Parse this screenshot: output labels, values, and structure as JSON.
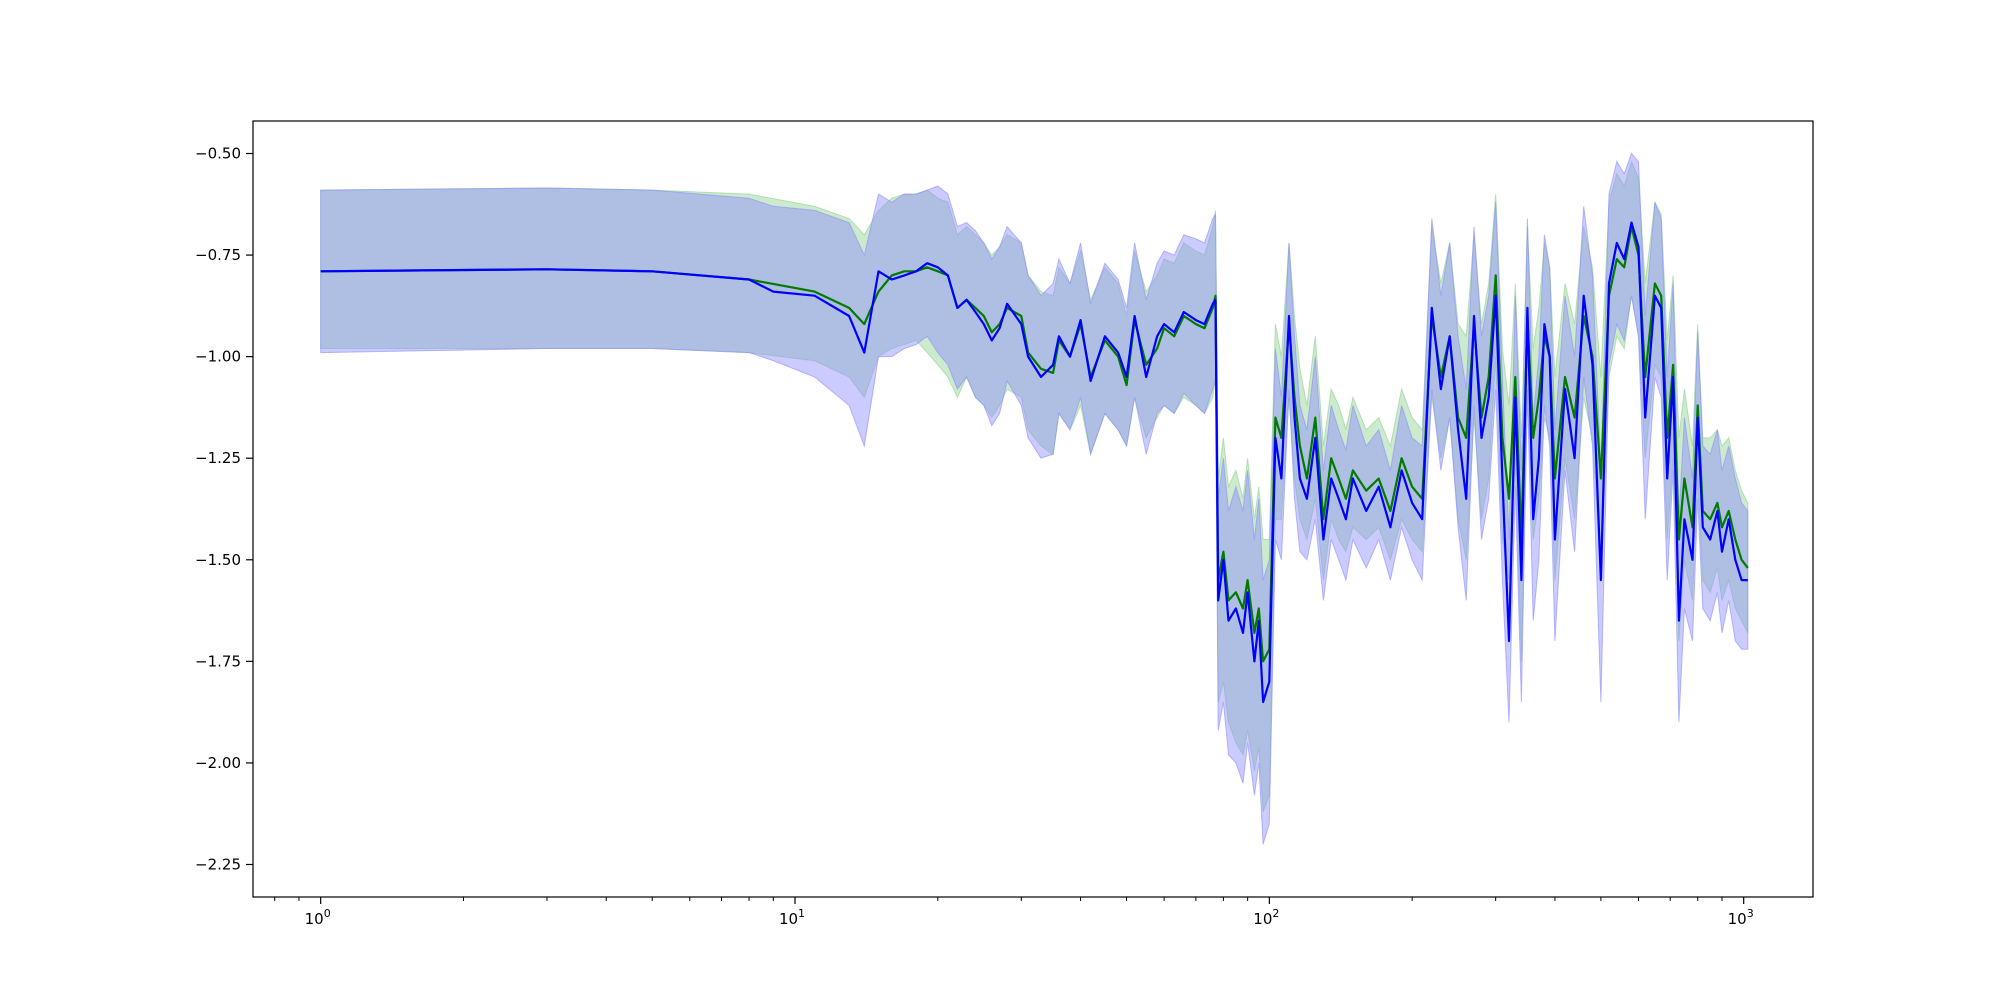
{
  "chart_data": {
    "type": "line",
    "title": "",
    "xlabel": "",
    "ylabel": "",
    "x_scale": "log",
    "xlim": [
      0.72,
      1400
    ],
    "ylim": [
      -2.33,
      -0.42
    ],
    "grid": false,
    "legend": "none",
    "x_ticks": [
      {
        "value": 1,
        "base": "10",
        "exp": "0"
      },
      {
        "value": 10,
        "base": "10",
        "exp": "1"
      },
      {
        "value": 100,
        "base": "10",
        "exp": "2"
      },
      {
        "value": 1000,
        "base": "10",
        "exp": "3"
      }
    ],
    "y_ticks": [
      {
        "value": -0.5,
        "label": "−0.50"
      },
      {
        "value": -0.75,
        "label": "−0.75"
      },
      {
        "value": -1.0,
        "label": "−1.00"
      },
      {
        "value": -1.25,
        "label": "−1.25"
      },
      {
        "value": -1.5,
        "label": "−1.50"
      },
      {
        "value": -1.75,
        "label": "−1.75"
      },
      {
        "value": -2.0,
        "label": "−2.00"
      },
      {
        "value": -2.25,
        "label": "−2.25"
      }
    ],
    "series": [
      {
        "color": "#007a00",
        "band_color": "#8fd08f",
        "x": [
          1,
          3,
          5,
          8,
          11,
          13,
          14,
          15,
          16,
          17,
          18,
          19,
          20,
          21,
          22,
          23,
          24,
          25,
          26,
          27,
          28,
          30,
          31,
          33,
          35,
          36,
          38,
          40,
          42,
          45,
          48,
          50,
          52,
          55,
          58,
          60,
          63,
          66,
          70,
          73,
          76,
          77,
          78,
          80,
          82,
          85,
          88,
          90,
          93,
          95,
          97,
          100,
          103,
          106,
          110,
          113,
          116,
          120,
          125,
          130,
          135,
          140,
          145,
          150,
          160,
          170,
          180,
          190,
          200,
          210,
          220,
          230,
          240,
          250,
          260,
          270,
          280,
          290,
          300,
          310,
          320,
          330,
          340,
          350,
          360,
          370,
          380,
          390,
          400,
          420,
          440,
          460,
          480,
          500,
          520,
          540,
          560,
          580,
          600,
          620,
          650,
          670,
          690,
          710,
          730,
          750,
          780,
          800,
          820,
          850,
          880,
          900,
          930,
          960,
          990,
          1020
        ],
        "y": [
          -0.79,
          -0.785,
          -0.79,
          -0.81,
          -0.84,
          -0.88,
          -0.92,
          -0.84,
          -0.8,
          -0.79,
          -0.79,
          -0.78,
          -0.79,
          -0.8,
          -0.88,
          -0.86,
          -0.88,
          -0.9,
          -0.94,
          -0.92,
          -0.88,
          -0.9,
          -0.99,
          -1.03,
          -1.04,
          -0.96,
          -1.0,
          -0.92,
          -1.05,
          -0.96,
          -1.0,
          -1.07,
          -0.91,
          -1.02,
          -0.98,
          -0.93,
          -0.95,
          -0.9,
          -0.92,
          -0.93,
          -0.88,
          -0.85,
          -1.55,
          -1.48,
          -1.6,
          -1.58,
          -1.62,
          -1.55,
          -1.68,
          -1.62,
          -1.75,
          -1.72,
          -1.15,
          -1.2,
          -0.92,
          -1.1,
          -1.22,
          -1.3,
          -1.15,
          -1.4,
          -1.25,
          -1.3,
          -1.35,
          -1.28,
          -1.33,
          -1.3,
          -1.38,
          -1.25,
          -1.32,
          -1.35,
          -0.9,
          -1.05,
          -0.95,
          -1.15,
          -1.2,
          -0.92,
          -1.15,
          -1.05,
          -0.8,
          -1.2,
          -1.35,
          -1.05,
          -1.45,
          -0.9,
          -1.2,
          -1.1,
          -0.95,
          -1.0,
          -1.3,
          -1.05,
          -1.15,
          -0.9,
          -1.0,
          -1.3,
          -0.85,
          -0.76,
          -0.78,
          -0.68,
          -0.75,
          -1.05,
          -0.82,
          -0.85,
          -1.2,
          -1.02,
          -1.45,
          -1.3,
          -1.42,
          -1.12,
          -1.38,
          -1.4,
          -1.36,
          -1.42,
          -1.38,
          -1.45,
          -1.5,
          -1.52
        ],
        "lower": [
          -0.98,
          -0.98,
          -0.98,
          -0.99,
          -1.01,
          -1.05,
          -1.1,
          -1.0,
          -0.98,
          -0.97,
          -0.96,
          -0.99,
          -1.02,
          -1.05,
          -1.1,
          -1.05,
          -1.1,
          -1.12,
          -1.15,
          -1.12,
          -1.08,
          -1.1,
          -1.18,
          -1.22,
          -1.24,
          -1.14,
          -1.18,
          -1.12,
          -1.24,
          -1.14,
          -1.18,
          -1.22,
          -1.1,
          -1.2,
          -1.15,
          -1.12,
          -1.14,
          -1.1,
          -1.12,
          -1.14,
          -1.1,
          -1.05,
          -1.85,
          -1.8,
          -1.9,
          -1.95,
          -1.98,
          -1.92,
          -2.02,
          -1.96,
          -2.12,
          -2.08,
          -1.4,
          -1.4,
          -1.1,
          -1.3,
          -1.4,
          -1.45,
          -1.35,
          -1.55,
          -1.4,
          -1.45,
          -1.48,
          -1.42,
          -1.45,
          -1.42,
          -1.5,
          -1.4,
          -1.45,
          -1.48,
          -1.1,
          -1.25,
          -1.15,
          -1.4,
          -1.5,
          -1.15,
          -1.4,
          -1.3,
          -1.0,
          -1.45,
          -1.55,
          -1.25,
          -1.75,
          -1.1,
          -1.45,
          -1.35,
          -1.15,
          -1.2,
          -1.55,
          -1.25,
          -1.4,
          -1.1,
          -1.2,
          -1.55,
          -1.05,
          -0.95,
          -0.98,
          -0.85,
          -0.95,
          -1.25,
          -1.02,
          -1.05,
          -1.45,
          -1.25,
          -1.7,
          -1.5,
          -1.6,
          -1.3,
          -1.55,
          -1.58,
          -1.52,
          -1.6,
          -1.55,
          -1.62,
          -1.65,
          -1.68
        ],
        "upper": [
          -0.59,
          -0.585,
          -0.59,
          -0.6,
          -0.63,
          -0.66,
          -0.7,
          -0.64,
          -0.61,
          -0.6,
          -0.6,
          -0.59,
          -0.61,
          -0.62,
          -0.7,
          -0.68,
          -0.7,
          -0.72,
          -0.75,
          -0.73,
          -0.7,
          -0.72,
          -0.8,
          -0.84,
          -0.85,
          -0.78,
          -0.82,
          -0.74,
          -0.86,
          -0.78,
          -0.82,
          -0.9,
          -0.74,
          -0.84,
          -0.8,
          -0.76,
          -0.77,
          -0.72,
          -0.74,
          -0.75,
          -0.68,
          -0.64,
          -1.3,
          -1.2,
          -1.32,
          -1.28,
          -1.35,
          -1.25,
          -1.4,
          -1.32,
          -1.45,
          -1.45,
          -0.92,
          -1.0,
          -0.72,
          -0.9,
          -1.03,
          -1.12,
          -0.95,
          -1.22,
          -1.08,
          -1.12,
          -1.18,
          -1.1,
          -1.18,
          -1.15,
          -1.22,
          -1.08,
          -1.15,
          -1.18,
          -0.68,
          -0.82,
          -0.72,
          -0.92,
          -0.95,
          -0.7,
          -0.92,
          -0.82,
          -0.6,
          -0.98,
          -1.12,
          -0.82,
          -1.2,
          -0.68,
          -0.98,
          -0.88,
          -0.72,
          -0.78,
          -1.05,
          -0.82,
          -0.92,
          -0.68,
          -0.78,
          -1.05,
          -0.62,
          -0.55,
          -0.58,
          -0.52,
          -0.56,
          -0.82,
          -0.62,
          -0.65,
          -0.96,
          -0.8,
          -1.2,
          -1.08,
          -1.22,
          -0.92,
          -1.2,
          -1.2,
          -1.18,
          -1.22,
          -1.2,
          -1.28,
          -1.33,
          -1.36
        ]
      },
      {
        "color": "#0000ff",
        "band_color": "#8c8cff",
        "x": [
          1,
          3,
          5,
          8,
          9,
          11,
          13,
          14,
          15,
          16,
          17,
          18,
          19,
          20,
          21,
          22,
          23,
          24,
          25,
          26,
          27,
          28,
          30,
          31,
          33,
          35,
          36,
          38,
          40,
          42,
          45,
          48,
          50,
          52,
          55,
          58,
          60,
          63,
          66,
          70,
          73,
          76,
          77,
          78,
          80,
          82,
          85,
          88,
          90,
          93,
          95,
          97,
          100,
          103,
          106,
          110,
          113,
          116,
          120,
          125,
          130,
          135,
          140,
          145,
          150,
          160,
          170,
          180,
          190,
          200,
          210,
          220,
          230,
          240,
          250,
          260,
          270,
          280,
          290,
          300,
          310,
          320,
          330,
          340,
          350,
          360,
          370,
          380,
          390,
          400,
          420,
          440,
          460,
          480,
          500,
          520,
          540,
          560,
          580,
          600,
          620,
          650,
          670,
          690,
          710,
          730,
          750,
          780,
          800,
          820,
          850,
          880,
          900,
          930,
          960,
          990,
          1020
        ],
        "y": [
          -0.79,
          -0.785,
          -0.79,
          -0.81,
          -0.84,
          -0.85,
          -0.9,
          -0.99,
          -0.79,
          -0.81,
          -0.8,
          -0.79,
          -0.77,
          -0.78,
          -0.8,
          -0.88,
          -0.86,
          -0.89,
          -0.92,
          -0.96,
          -0.93,
          -0.87,
          -0.92,
          -1.0,
          -1.05,
          -1.02,
          -0.95,
          -1.0,
          -0.91,
          -1.06,
          -0.95,
          -0.99,
          -1.05,
          -0.9,
          -1.05,
          -0.95,
          -0.92,
          -0.94,
          -0.89,
          -0.91,
          -0.92,
          -0.87,
          -0.86,
          -1.6,
          -1.5,
          -1.65,
          -1.62,
          -1.68,
          -1.58,
          -1.75,
          -1.65,
          -1.85,
          -1.8,
          -1.2,
          -1.3,
          -0.9,
          -1.15,
          -1.3,
          -1.35,
          -1.2,
          -1.45,
          -1.3,
          -1.35,
          -1.4,
          -1.3,
          -1.38,
          -1.32,
          -1.42,
          -1.28,
          -1.36,
          -1.4,
          -0.88,
          -1.08,
          -0.95,
          -1.18,
          -1.35,
          -0.9,
          -1.2,
          -1.1,
          -0.85,
          -1.3,
          -1.7,
          -1.1,
          -1.55,
          -0.88,
          -1.4,
          -1.25,
          -0.92,
          -1.0,
          -1.45,
          -1.08,
          -1.25,
          -0.85,
          -1.02,
          -1.55,
          -0.82,
          -0.72,
          -0.76,
          -0.67,
          -0.73,
          -1.15,
          -0.85,
          -0.88,
          -1.3,
          -1.05,
          -1.65,
          -1.4,
          -1.5,
          -1.15,
          -1.42,
          -1.45,
          -1.38,
          -1.48,
          -1.4,
          -1.5,
          -1.55,
          -1.55
        ],
        "lower": [
          -0.99,
          -0.98,
          -0.98,
          -0.99,
          -1.01,
          -1.05,
          -1.12,
          -1.22,
          -1.0,
          -1.0,
          -0.98,
          -0.97,
          -0.95,
          -0.99,
          -1.02,
          -1.08,
          -1.05,
          -1.1,
          -1.12,
          -1.17,
          -1.14,
          -1.06,
          -1.12,
          -1.2,
          -1.25,
          -1.24,
          -1.14,
          -1.18,
          -1.1,
          -1.24,
          -1.14,
          -1.18,
          -1.22,
          -1.1,
          -1.24,
          -1.14,
          -1.12,
          -1.14,
          -1.09,
          -1.12,
          -1.14,
          -1.08,
          -1.06,
          -1.92,
          -1.85,
          -1.98,
          -2.0,
          -2.05,
          -1.95,
          -2.08,
          -2.0,
          -2.2,
          -2.15,
          -1.45,
          -1.5,
          -1.08,
          -1.35,
          -1.48,
          -1.5,
          -1.4,
          -1.6,
          -1.45,
          -1.5,
          -1.55,
          -1.45,
          -1.52,
          -1.45,
          -1.55,
          -1.42,
          -1.5,
          -1.55,
          -1.08,
          -1.28,
          -1.15,
          -1.42,
          -1.6,
          -1.12,
          -1.45,
          -1.35,
          -1.08,
          -1.55,
          -1.9,
          -1.32,
          -1.85,
          -1.08,
          -1.65,
          -1.5,
          -1.12,
          -1.22,
          -1.7,
          -1.28,
          -1.48,
          -1.05,
          -1.22,
          -1.85,
          -1.02,
          -0.92,
          -0.96,
          -0.85,
          -0.95,
          -1.4,
          -1.05,
          -1.1,
          -1.55,
          -1.28,
          -1.9,
          -1.62,
          -1.7,
          -1.35,
          -1.62,
          -1.65,
          -1.58,
          -1.68,
          -1.6,
          -1.7,
          -1.72,
          -1.72
        ],
        "upper": [
          -0.59,
          -0.585,
          -0.59,
          -0.61,
          -0.63,
          -0.64,
          -0.67,
          -0.75,
          -0.6,
          -0.62,
          -0.6,
          -0.6,
          -0.59,
          -0.58,
          -0.6,
          -0.68,
          -0.67,
          -0.69,
          -0.72,
          -0.76,
          -0.73,
          -0.68,
          -0.72,
          -0.8,
          -0.85,
          -0.82,
          -0.76,
          -0.82,
          -0.72,
          -0.87,
          -0.77,
          -0.81,
          -0.88,
          -0.72,
          -0.86,
          -0.77,
          -0.74,
          -0.75,
          -0.7,
          -0.71,
          -0.72,
          -0.66,
          -0.65,
          -1.35,
          -1.25,
          -1.38,
          -1.32,
          -1.38,
          -1.28,
          -1.45,
          -1.35,
          -1.55,
          -1.5,
          -0.98,
          -1.1,
          -0.72,
          -0.95,
          -1.12,
          -1.18,
          -1.0,
          -1.28,
          -1.12,
          -1.18,
          -1.23,
          -1.12,
          -1.22,
          -1.18,
          -1.28,
          -1.12,
          -1.2,
          -1.22,
          -0.66,
          -0.85,
          -0.72,
          -0.95,
          -1.08,
          -0.68,
          -0.95,
          -0.85,
          -0.62,
          -1.05,
          -1.45,
          -0.85,
          -1.28,
          -0.66,
          -1.15,
          -1.0,
          -0.7,
          -0.78,
          -1.18,
          -0.85,
          -1.0,
          -0.63,
          -0.8,
          -1.28,
          -0.6,
          -0.52,
          -0.55,
          -0.5,
          -0.52,
          -0.9,
          -0.62,
          -0.66,
          -1.05,
          -0.82,
          -1.4,
          -1.15,
          -1.3,
          -0.94,
          -1.22,
          -1.24,
          -1.18,
          -1.28,
          -1.22,
          -1.3,
          -1.36,
          -1.38
        ]
      }
    ]
  }
}
